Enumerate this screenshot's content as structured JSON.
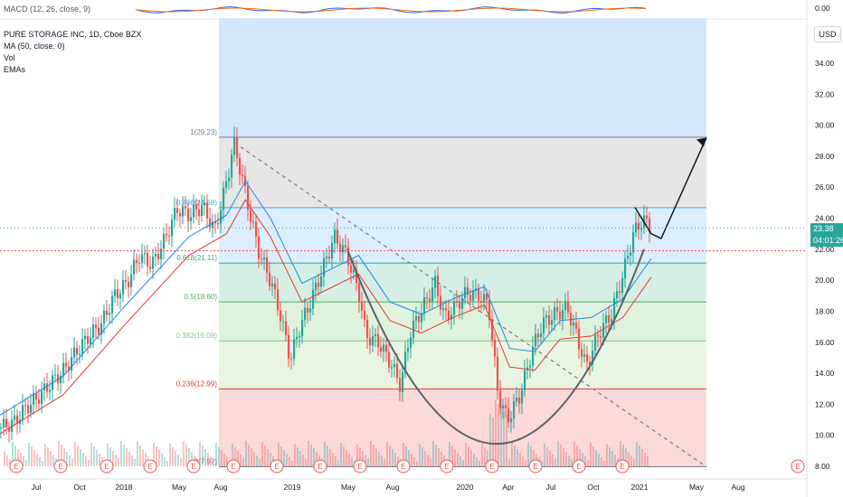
{
  "legend": {
    "macd": "MACD (12, 26, close, 9)",
    "symbol": "PURE STORAGE INC, 1D, Cboe BZX",
    "ma": "MA (50, close, 0)",
    "vol": "Vol",
    "emas": "EMAs"
  },
  "currency_button": "USD",
  "price_axis": {
    "labels": [
      "0.00",
      "34.00",
      "32.00",
      "30.00",
      "28.00",
      "26.00",
      "24.00",
      "22.00",
      "20.00",
      "18.00",
      "16.00",
      "14.00",
      "12.00",
      "10.00",
      "8.00"
    ],
    "top_partial_label": "3"
  },
  "current_price": {
    "value": "23.38",
    "countdown": "04:01:26"
  },
  "time_axis": {
    "labels": [
      "Jul",
      "Oct",
      "2018",
      "May",
      "Aug",
      "2019",
      "May",
      "Aug",
      "2020",
      "Apr",
      "Jul",
      "Oct",
      "2021",
      "May",
      "Aug"
    ]
  },
  "fib_levels": [
    {
      "label": "1(29.23)",
      "value": 29.23
    },
    {
      "label": "0.786(24.68)",
      "value": 24.68
    },
    {
      "label": "0.618(21.11)",
      "value": 21.11
    },
    {
      "label": "0.5(18.60)",
      "value": 18.6
    },
    {
      "label": "0.382(16.09)",
      "value": 16.09
    },
    {
      "label": "0.236(12.99)",
      "value": 12.99
    },
    {
      "label": "0(7.97)",
      "value": 7.97
    }
  ],
  "earnings_marker": "E",
  "colors": {
    "up": "#26a69a",
    "down": "#ef5350",
    "accent": "#2962ff"
  },
  "chart_data": {
    "type": "candlestick",
    "y_range": [
      7.5,
      35.5
    ],
    "fib_range": [
      7.97,
      29.23
    ],
    "price_series": [
      {
        "x": 0.0,
        "y": 10.5
      },
      {
        "x": 0.2,
        "y": 10.8
      },
      {
        "x": 0.4,
        "y": 11.8
      },
      {
        "x": 0.6,
        "y": 12.5
      },
      {
        "x": 0.8,
        "y": 13.4
      },
      {
        "x": 1.0,
        "y": 14.2
      },
      {
        "x": 1.2,
        "y": 15.4
      },
      {
        "x": 1.4,
        "y": 16.4
      },
      {
        "x": 1.6,
        "y": 17.2
      },
      {
        "x": 1.8,
        "y": 19.0
      },
      {
        "x": 2.0,
        "y": 19.8
      },
      {
        "x": 2.2,
        "y": 21.6
      },
      {
        "x": 2.4,
        "y": 21.0
      },
      {
        "x": 2.6,
        "y": 22.6
      },
      {
        "x": 2.8,
        "y": 24.6
      },
      {
        "x": 3.0,
        "y": 24.2
      },
      {
        "x": 3.2,
        "y": 24.8
      },
      {
        "x": 3.4,
        "y": 23.2
      },
      {
        "x": 3.6,
        "y": 26.6
      },
      {
        "x": 3.7,
        "y": 28.9
      },
      {
        "x": 3.8,
        "y": 27.2
      },
      {
        "x": 3.95,
        "y": 24.4
      },
      {
        "x": 4.1,
        "y": 21.8
      },
      {
        "x": 4.3,
        "y": 19.8
      },
      {
        "x": 4.45,
        "y": 17.6
      },
      {
        "x": 4.6,
        "y": 14.9
      },
      {
        "x": 4.75,
        "y": 17.0
      },
      {
        "x": 4.9,
        "y": 18.4
      },
      {
        "x": 5.1,
        "y": 20.6
      },
      {
        "x": 5.3,
        "y": 22.8
      },
      {
        "x": 5.5,
        "y": 21.6
      },
      {
        "x": 5.7,
        "y": 19.0
      },
      {
        "x": 5.8,
        "y": 16.4
      },
      {
        "x": 6.0,
        "y": 16.0
      },
      {
        "x": 6.2,
        "y": 14.6
      },
      {
        "x": 6.35,
        "y": 13.2
      },
      {
        "x": 6.5,
        "y": 16.6
      },
      {
        "x": 6.7,
        "y": 18.2
      },
      {
        "x": 6.9,
        "y": 19.8
      },
      {
        "x": 7.05,
        "y": 17.6
      },
      {
        "x": 7.2,
        "y": 18.2
      },
      {
        "x": 7.4,
        "y": 19.2
      },
      {
        "x": 7.6,
        "y": 19.0
      },
      {
        "x": 7.75,
        "y": 18.4
      },
      {
        "x": 7.9,
        "y": 12.6
      },
      {
        "x": 8.05,
        "y": 11.0
      },
      {
        "x": 8.25,
        "y": 12.6
      },
      {
        "x": 8.45,
        "y": 15.6
      },
      {
        "x": 8.6,
        "y": 17.2
      },
      {
        "x": 8.8,
        "y": 17.8
      },
      {
        "x": 9.0,
        "y": 18.2
      },
      {
        "x": 9.15,
        "y": 16.4
      },
      {
        "x": 9.3,
        "y": 14.4
      },
      {
        "x": 9.5,
        "y": 16.6
      },
      {
        "x": 9.7,
        "y": 17.8
      },
      {
        "x": 9.9,
        "y": 20.6
      },
      {
        "x": 10.05,
        "y": 23.0
      },
      {
        "x": 10.2,
        "y": 23.9
      },
      {
        "x": 10.35,
        "y": 23.4
      }
    ],
    "series_x_range": [
      0,
      10.35
    ],
    "ma_series": [
      {
        "x": 0.0,
        "y": 10.1
      },
      {
        "x": 1.0,
        "y": 12.6
      },
      {
        "x": 2.0,
        "y": 17.2
      },
      {
        "x": 3.0,
        "y": 21.6
      },
      {
        "x": 3.6,
        "y": 23.0
      },
      {
        "x": 3.9,
        "y": 25.2
      },
      {
        "x": 4.3,
        "y": 22.8
      },
      {
        "x": 4.8,
        "y": 18.6
      },
      {
        "x": 5.3,
        "y": 19.6
      },
      {
        "x": 5.7,
        "y": 20.4
      },
      {
        "x": 6.2,
        "y": 17.4
      },
      {
        "x": 6.7,
        "y": 16.6
      },
      {
        "x": 7.2,
        "y": 17.6
      },
      {
        "x": 7.7,
        "y": 18.4
      },
      {
        "x": 8.1,
        "y": 14.4
      },
      {
        "x": 8.5,
        "y": 14.2
      },
      {
        "x": 8.9,
        "y": 16.2
      },
      {
        "x": 9.4,
        "y": 16.4
      },
      {
        "x": 9.9,
        "y": 17.6
      },
      {
        "x": 10.35,
        "y": 20.2
      }
    ]
  }
}
